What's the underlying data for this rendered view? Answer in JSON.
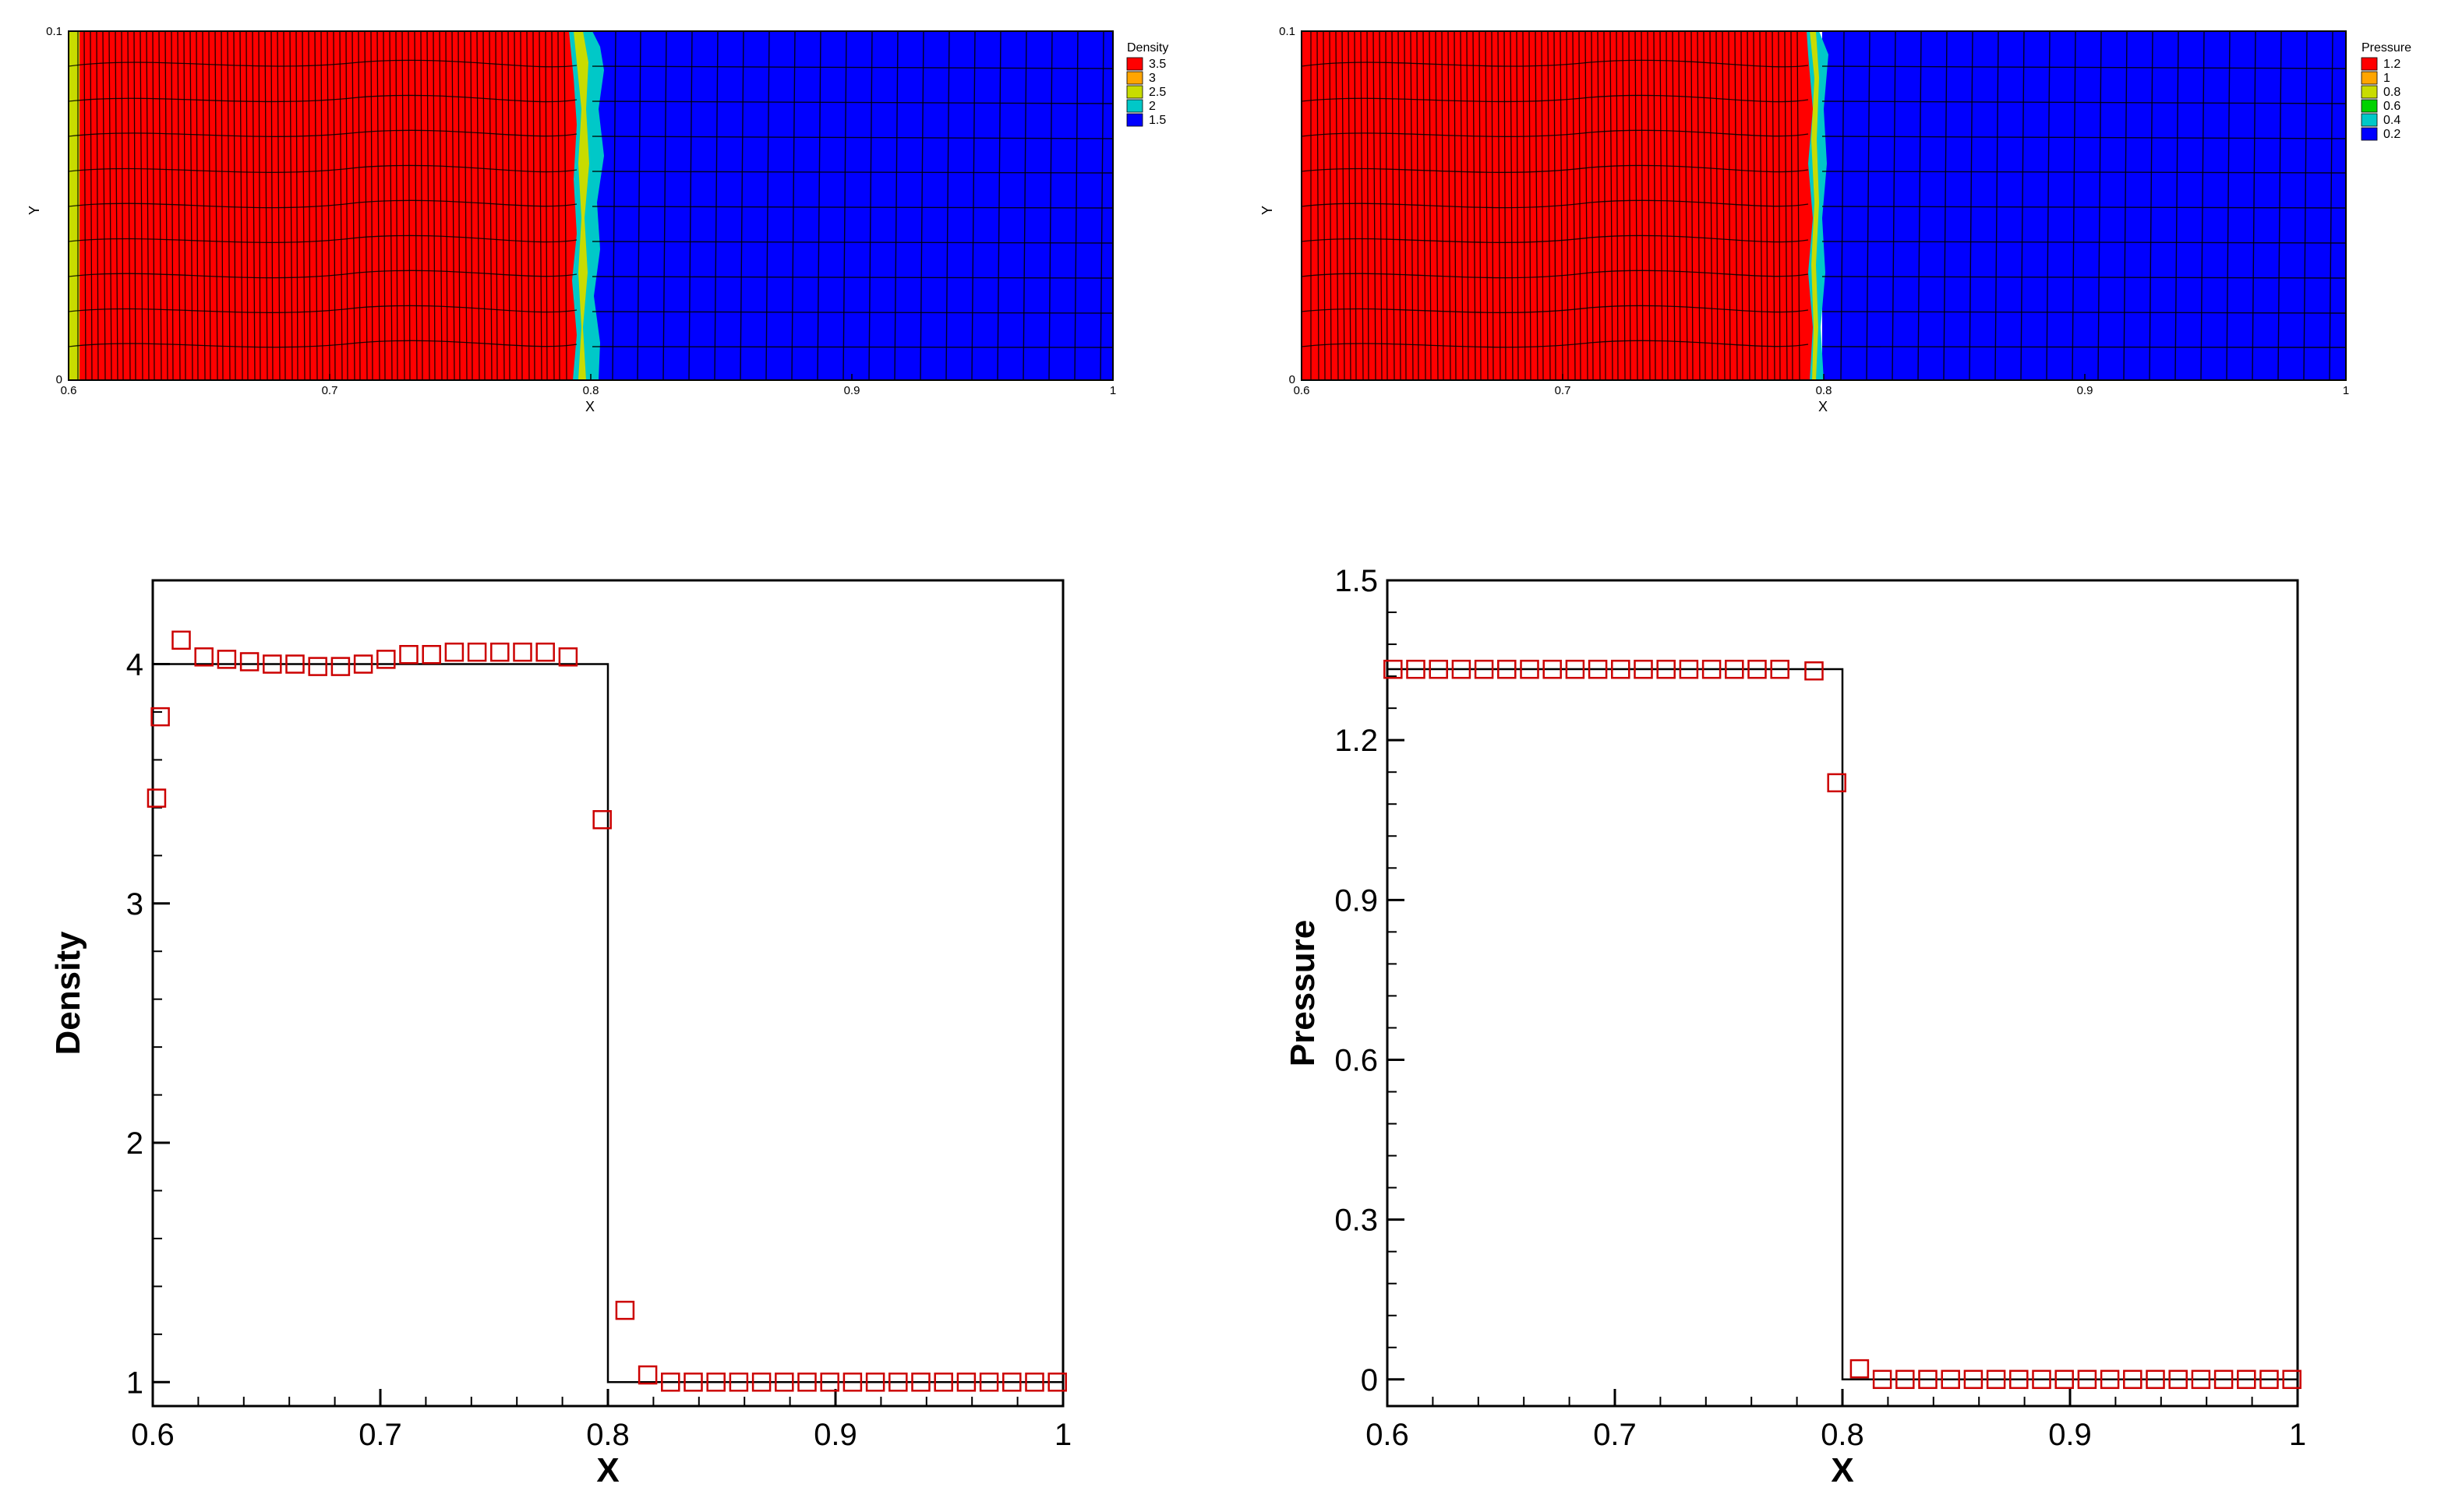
{
  "chart_data": [
    {
      "type": "heatmap",
      "variable": "Density",
      "xlabel": "X",
      "ylabel": "Y",
      "xlim": [
        0.6,
        1.0
      ],
      "ylim": [
        0.0,
        0.1
      ],
      "x_ticks": [
        "0.6",
        "0.7",
        "0.8",
        "0.9",
        "1"
      ],
      "y_ticks": [
        "0",
        "0.1"
      ],
      "legend": {
        "title": "Density",
        "placement": "right",
        "levels": [
          {
            "label": "3.5",
            "color": "#ff0000"
          },
          {
            "label": "3",
            "color": "#ffa500"
          },
          {
            "label": "2.5",
            "color": "#c8dc00"
          },
          {
            "label": "2",
            "color": "#00c8c8"
          },
          {
            "label": "1.5",
            "color": "#0000ff"
          }
        ]
      },
      "field": {
        "shock_x": 0.8,
        "left_value": 4.0,
        "right_value": 1.0
      },
      "colors": {
        "high": "#ff0000",
        "low": "#0000ff",
        "front": "#00c8c8",
        "front_mid": "#c8dc00"
      }
    },
    {
      "type": "heatmap",
      "variable": "Pressure",
      "xlabel": "X",
      "ylabel": "Y",
      "xlim": [
        0.6,
        1.0
      ],
      "ylim": [
        0.0,
        0.1
      ],
      "x_ticks": [
        "0.6",
        "0.7",
        "0.8",
        "0.9",
        "1"
      ],
      "y_ticks": [
        "0",
        "0.1"
      ],
      "legend": {
        "title": "Pressure",
        "placement": "right",
        "levels": [
          {
            "label": "1.2",
            "color": "#ff0000"
          },
          {
            "label": "1",
            "color": "#ffa500"
          },
          {
            "label": "0.8",
            "color": "#c8dc00"
          },
          {
            "label": "0.6",
            "color": "#00d200"
          },
          {
            "label": "0.4",
            "color": "#00c8c8"
          },
          {
            "label": "0.2",
            "color": "#0000ff"
          }
        ]
      },
      "field": {
        "shock_x": 0.8,
        "left_value": 1.3333,
        "right_value": 0.0
      },
      "colors": {
        "high": "#ff0000",
        "low": "#0000ff",
        "front": "#00c8c8",
        "front_mid": "#c8dc00"
      }
    },
    {
      "type": "line",
      "xlabel": "X",
      "ylabel": "Density",
      "xlim": [
        0.6,
        1.0
      ],
      "ylim": [
        0.9,
        4.35
      ],
      "x_ticks": [
        0.6,
        0.7,
        0.8,
        0.9,
        1.0
      ],
      "x_tick_labels": [
        "0.6",
        "0.7",
        "0.8",
        "0.9",
        "1"
      ],
      "y_ticks": [
        1,
        2,
        3,
        4
      ],
      "y_tick_labels": [
        "1",
        "2",
        "3",
        "4"
      ],
      "series": [
        {
          "style": "line",
          "color": "#000000",
          "x": [
            0.6,
            0.8,
            0.8,
            1.0
          ],
          "y": [
            4.0,
            4.0,
            1.0,
            1.0
          ]
        },
        {
          "style": "markers",
          "marker": "square",
          "color": "#cc0000",
          "x": [
            0.6017,
            0.6033,
            0.6125,
            0.6225,
            0.6325,
            0.6425,
            0.6525,
            0.6625,
            0.6725,
            0.6825,
            0.6925,
            0.7025,
            0.7125,
            0.7225,
            0.7325,
            0.7425,
            0.7525,
            0.7625,
            0.7725,
            0.7825,
            0.7975,
            0.8075,
            0.8175,
            0.8275,
            0.8375,
            0.8475,
            0.8575,
            0.8675,
            0.8775,
            0.8875,
            0.8975,
            0.9075,
            0.9175,
            0.9275,
            0.9375,
            0.9475,
            0.9575,
            0.9675,
            0.9775,
            0.9875,
            0.9975
          ],
          "y": [
            3.44,
            3.78,
            4.1,
            4.03,
            4.02,
            4.01,
            4.0,
            4.0,
            3.99,
            3.99,
            4.0,
            4.02,
            4.04,
            4.04,
            4.05,
            4.05,
            4.05,
            4.05,
            4.05,
            4.03,
            3.35,
            1.3,
            1.03,
            1.0,
            1.0,
            1.0,
            1.0,
            1.0,
            1.0,
            1.0,
            1.0,
            1.0,
            1.0,
            1.0,
            1.0,
            1.0,
            1.0,
            1.0,
            1.0,
            1.0,
            1.0
          ]
        }
      ]
    },
    {
      "type": "line",
      "xlabel": "X",
      "ylabel": "Pressure",
      "xlim": [
        0.6,
        1.0
      ],
      "ylim": [
        -0.05,
        1.5
      ],
      "x_ticks": [
        0.6,
        0.7,
        0.8,
        0.9,
        1.0
      ],
      "x_tick_labels": [
        "0.6",
        "0.7",
        "0.8",
        "0.9",
        "1"
      ],
      "y_ticks": [
        0,
        0.3,
        0.6,
        0.9,
        1.2,
        1.5
      ],
      "y_tick_labels": [
        "0",
        "0.3",
        "0.6",
        "0.9",
        "1.2",
        "1.5"
      ],
      "series": [
        {
          "style": "line",
          "color": "#000000",
          "x": [
            0.6,
            0.8,
            0.8,
            1.0
          ],
          "y": [
            1.3333,
            1.3333,
            0.0,
            0.0
          ]
        },
        {
          "style": "markers",
          "marker": "square",
          "color": "#cc0000",
          "x": [
            0.6025,
            0.6125,
            0.6225,
            0.6325,
            0.6425,
            0.6525,
            0.6625,
            0.6725,
            0.6825,
            0.6925,
            0.7025,
            0.7125,
            0.7225,
            0.7325,
            0.7425,
            0.7525,
            0.7625,
            0.7725,
            0.7875,
            0.7975,
            0.8075,
            0.8175,
            0.8275,
            0.8375,
            0.8475,
            0.8575,
            0.8675,
            0.8775,
            0.8875,
            0.8975,
            0.9075,
            0.9175,
            0.9275,
            0.9375,
            0.9475,
            0.9575,
            0.9675,
            0.9775,
            0.9875,
            0.9975
          ],
          "y": [
            1.333,
            1.333,
            1.333,
            1.333,
            1.333,
            1.333,
            1.333,
            1.333,
            1.333,
            1.333,
            1.333,
            1.333,
            1.333,
            1.333,
            1.333,
            1.333,
            1.333,
            1.333,
            1.33,
            1.12,
            0.02,
            0.0,
            0.0,
            0.0,
            0.0,
            0.0,
            0.0,
            0.0,
            0.0,
            0.0,
            0.0,
            0.0,
            0.0,
            0.0,
            0.0,
            0.0,
            0.0,
            0.0,
            0.0,
            0.0
          ]
        }
      ]
    }
  ]
}
